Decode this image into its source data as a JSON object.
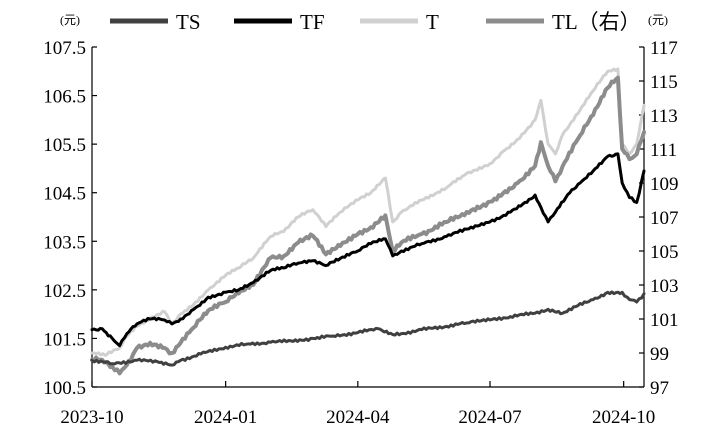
{
  "chart_data": {
    "type": "line",
    "units": {
      "left": "(元)",
      "right": "(元)"
    },
    "left_axis": {
      "ylim": [
        100.5,
        107.5
      ],
      "ticks": [
        "100.5",
        "101.5",
        "102.5",
        "103.5",
        "104.5",
        "105.5",
        "106.5",
        "107.5"
      ]
    },
    "right_axis": {
      "ylim": [
        97,
        117
      ],
      "ticks": [
        "97",
        "99",
        "101",
        "103",
        "105",
        "107",
        "109",
        "111",
        "113",
        "115",
        "117"
      ]
    },
    "x_axis": {
      "start": "2023-10",
      "end": "2024-10-15",
      "tick_labels": [
        "2023-10",
        "2024-01",
        "2024-04",
        "2024-07",
        "2024-10"
      ]
    },
    "grid": false,
    "legend_position": "top",
    "series": [
      {
        "name": "TS",
        "axis": "left",
        "color": "#404040",
        "width": 3,
        "points": [
          [
            "2023-10-01",
            101.05
          ],
          [
            "2023-10-15",
            100.98
          ],
          [
            "2023-11-01",
            101.05
          ],
          [
            "2023-11-15",
            101.02
          ],
          [
            "2023-11-25",
            100.95
          ],
          [
            "2023-12-01",
            101.05
          ],
          [
            "2023-12-15",
            101.18
          ],
          [
            "2024-01-01",
            101.32
          ],
          [
            "2024-01-15",
            101.38
          ],
          [
            "2024-02-01",
            101.42
          ],
          [
            "2024-02-15",
            101.45
          ],
          [
            "2024-03-01",
            101.5
          ],
          [
            "2024-03-15",
            101.55
          ],
          [
            "2024-04-01",
            101.62
          ],
          [
            "2024-04-15",
            101.7
          ],
          [
            "2024-04-25",
            101.58
          ],
          [
            "2024-05-01",
            101.6
          ],
          [
            "2024-05-15",
            101.68
          ],
          [
            "2024-06-01",
            101.75
          ],
          [
            "2024-06-15",
            101.82
          ],
          [
            "2024-07-01",
            101.88
          ],
          [
            "2024-07-15",
            101.95
          ],
          [
            "2024-08-01",
            102.02
          ],
          [
            "2024-08-10",
            102.1
          ],
          [
            "2024-08-20",
            102.02
          ],
          [
            "2024-09-01",
            102.22
          ],
          [
            "2024-09-10",
            102.3
          ],
          [
            "2024-09-20",
            102.45
          ],
          [
            "2024-09-30",
            102.45
          ],
          [
            "2024-10-05",
            102.3
          ],
          [
            "2024-10-10",
            102.25
          ],
          [
            "2024-10-15",
            102.42
          ]
        ]
      },
      {
        "name": "TF",
        "axis": "left",
        "color": "#000000",
        "width": 3,
        "points": [
          [
            "2023-10-01",
            101.68
          ],
          [
            "2023-10-08",
            101.7
          ],
          [
            "2023-10-15",
            101.5
          ],
          [
            "2023-10-20",
            101.35
          ],
          [
            "2023-10-25",
            101.6
          ],
          [
            "2023-11-01",
            101.8
          ],
          [
            "2023-11-10",
            101.9
          ],
          [
            "2023-11-20",
            101.88
          ],
          [
            "2023-11-25",
            101.8
          ],
          [
            "2023-12-01",
            101.9
          ],
          [
            "2023-12-10",
            102.1
          ],
          [
            "2023-12-20",
            102.35
          ],
          [
            "2024-01-01",
            102.45
          ],
          [
            "2024-01-10",
            102.5
          ],
          [
            "2024-01-20",
            102.65
          ],
          [
            "2024-02-01",
            102.9
          ],
          [
            "2024-02-10",
            102.95
          ],
          [
            "2024-02-20",
            103.05
          ],
          [
            "2024-03-01",
            103.1
          ],
          [
            "2024-03-10",
            103.0
          ],
          [
            "2024-03-20",
            103.15
          ],
          [
            "2024-04-01",
            103.3
          ],
          [
            "2024-04-10",
            103.45
          ],
          [
            "2024-04-20",
            103.55
          ],
          [
            "2024-04-25",
            103.2
          ],
          [
            "2024-05-01",
            103.3
          ],
          [
            "2024-05-15",
            103.45
          ],
          [
            "2024-06-01",
            103.6
          ],
          [
            "2024-06-15",
            103.75
          ],
          [
            "2024-07-01",
            103.9
          ],
          [
            "2024-07-15",
            104.1
          ],
          [
            "2024-07-25",
            104.3
          ],
          [
            "2024-08-01",
            104.45
          ],
          [
            "2024-08-05",
            104.2
          ],
          [
            "2024-08-10",
            103.9
          ],
          [
            "2024-08-15",
            104.1
          ],
          [
            "2024-08-25",
            104.5
          ],
          [
            "2024-09-01",
            104.7
          ],
          [
            "2024-09-10",
            104.95
          ],
          [
            "2024-09-20",
            105.25
          ],
          [
            "2024-09-27",
            105.3
          ],
          [
            "2024-09-30",
            104.7
          ],
          [
            "2024-10-05",
            104.4
          ],
          [
            "2024-10-10",
            104.3
          ],
          [
            "2024-10-15",
            104.95
          ]
        ]
      },
      {
        "name": "T",
        "axis": "left",
        "color": "#d0d0d0",
        "width": 3,
        "points": [
          [
            "2023-10-01",
            101.2
          ],
          [
            "2023-10-10",
            101.15
          ],
          [
            "2023-10-20",
            101.3
          ],
          [
            "2023-10-25",
            101.55
          ],
          [
            "2023-11-01",
            101.75
          ],
          [
            "2023-11-10",
            101.9
          ],
          [
            "2023-11-20",
            102.05
          ],
          [
            "2023-11-25",
            101.8
          ],
          [
            "2023-12-01",
            102.0
          ],
          [
            "2023-12-10",
            102.2
          ],
          [
            "2023-12-20",
            102.5
          ],
          [
            "2024-01-01",
            102.8
          ],
          [
            "2024-01-10",
            102.95
          ],
          [
            "2024-01-20",
            103.15
          ],
          [
            "2024-02-01",
            103.6
          ],
          [
            "2024-02-10",
            103.7
          ],
          [
            "2024-02-20",
            104.0
          ],
          [
            "2024-03-01",
            104.15
          ],
          [
            "2024-03-10",
            103.8
          ],
          [
            "2024-03-20",
            104.1
          ],
          [
            "2024-04-01",
            104.35
          ],
          [
            "2024-04-10",
            104.5
          ],
          [
            "2024-04-20",
            104.8
          ],
          [
            "2024-04-25",
            103.9
          ],
          [
            "2024-05-01",
            104.1
          ],
          [
            "2024-05-15",
            104.35
          ],
          [
            "2024-06-01",
            104.6
          ],
          [
            "2024-06-15",
            104.9
          ],
          [
            "2024-07-01",
            105.1
          ],
          [
            "2024-07-10",
            105.35
          ],
          [
            "2024-07-20",
            105.6
          ],
          [
            "2024-08-01",
            106.0
          ],
          [
            "2024-08-05",
            106.4
          ],
          [
            "2024-08-10",
            105.5
          ],
          [
            "2024-08-15",
            105.3
          ],
          [
            "2024-08-20",
            105.7
          ],
          [
            "2024-09-01",
            106.2
          ],
          [
            "2024-09-10",
            106.6
          ],
          [
            "2024-09-20",
            107.0
          ],
          [
            "2024-09-27",
            107.05
          ],
          [
            "2024-09-30",
            105.5
          ],
          [
            "2024-10-05",
            105.3
          ],
          [
            "2024-10-10",
            105.5
          ],
          [
            "2024-10-15",
            106.3
          ]
        ]
      },
      {
        "name": "TL（右）",
        "axis": "right",
        "color": "#8c8c8c",
        "width": 4,
        "points": [
          [
            "2023-10-01",
            98.6
          ],
          [
            "2023-10-08",
            98.6
          ],
          [
            "2023-10-15",
            98.2
          ],
          [
            "2023-10-20",
            97.8
          ],
          [
            "2023-10-25",
            98.3
          ],
          [
            "2023-11-01",
            99.3
          ],
          [
            "2023-11-10",
            99.6
          ],
          [
            "2023-11-20",
            99.3
          ],
          [
            "2023-11-25",
            99.0
          ],
          [
            "2023-12-01",
            99.6
          ],
          [
            "2023-12-10",
            100.5
          ],
          [
            "2023-12-20",
            101.5
          ],
          [
            "2024-01-01",
            102.0
          ],
          [
            "2024-01-10",
            102.5
          ],
          [
            "2024-01-20",
            103.0
          ],
          [
            "2024-02-01",
            104.6
          ],
          [
            "2024-02-10",
            104.7
          ],
          [
            "2024-02-20",
            105.5
          ],
          [
            "2024-03-01",
            105.9
          ],
          [
            "2024-03-10",
            104.8
          ],
          [
            "2024-03-20",
            105.3
          ],
          [
            "2024-04-01",
            106.0
          ],
          [
            "2024-04-10",
            106.4
          ],
          [
            "2024-04-20",
            107.1
          ],
          [
            "2024-04-25",
            105.0
          ],
          [
            "2024-05-01",
            105.5
          ],
          [
            "2024-05-15",
            106.0
          ],
          [
            "2024-06-01",
            106.7
          ],
          [
            "2024-06-15",
            107.3
          ],
          [
            "2024-07-01",
            107.9
          ],
          [
            "2024-07-10",
            108.4
          ],
          [
            "2024-07-20",
            109.0
          ],
          [
            "2024-08-01",
            110.0
          ],
          [
            "2024-08-05",
            111.4
          ],
          [
            "2024-08-10",
            110.0
          ],
          [
            "2024-08-15",
            109.1
          ],
          [
            "2024-08-20",
            110.0
          ],
          [
            "2024-09-01",
            111.8
          ],
          [
            "2024-09-10",
            113.0
          ],
          [
            "2024-09-20",
            114.6
          ],
          [
            "2024-09-27",
            115.2
          ],
          [
            "2024-09-30",
            111.0
          ],
          [
            "2024-10-05",
            110.4
          ],
          [
            "2024-10-10",
            110.7
          ],
          [
            "2024-10-15",
            112.0
          ]
        ]
      }
    ]
  }
}
